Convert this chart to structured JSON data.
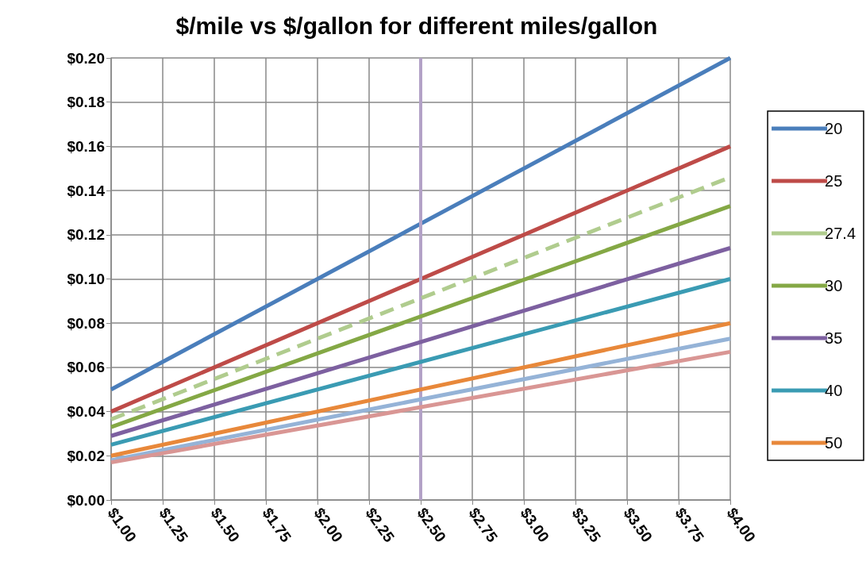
{
  "chart_data": {
    "type": "line",
    "title": "$/mile vs $/gallon for different miles/gallon",
    "xlim": [
      1,
      4
    ],
    "xticks": [
      {
        "value": 1,
        "label": "$1.00"
      },
      {
        "value": 1.25,
        "label": "$1.25"
      },
      {
        "value": 1.5,
        "label": "$1.50"
      },
      {
        "value": 1.75,
        "label": "$1.75"
      },
      {
        "value": 2,
        "label": "$2.00"
      },
      {
        "value": 2.25,
        "label": "$2.25"
      },
      {
        "value": 2.5,
        "label": "$2.50"
      },
      {
        "value": 2.75,
        "label": "$2.75"
      },
      {
        "value": 3,
        "label": "$3.00"
      },
      {
        "value": 3.25,
        "label": "$3.25"
      },
      {
        "value": 3.5,
        "label": "$3.50"
      },
      {
        "value": 3.75,
        "label": "$3.75"
      },
      {
        "value": 4,
        "label": "$4.00"
      }
    ],
    "ylim": [
      0,
      0.2
    ],
    "yticks": [
      {
        "value": 0,
        "label": "$0.00"
      },
      {
        "value": 0.02,
        "label": "$0.02"
      },
      {
        "value": 0.04,
        "label": "$0.04"
      },
      {
        "value": 0.06,
        "label": "$0.06"
      },
      {
        "value": 0.08,
        "label": "$0.08"
      },
      {
        "value": 0.1,
        "label": "$0.10"
      },
      {
        "value": 0.12,
        "label": "$0.12"
      },
      {
        "value": 0.14,
        "label": "$0.14"
      },
      {
        "value": 0.16,
        "label": "$0.16"
      },
      {
        "value": 0.18,
        "label": "$0.18"
      },
      {
        "value": 0.2,
        "label": "$0.20"
      }
    ],
    "grid": true,
    "legend": "right",
    "marker": "none",
    "x": [
      1,
      4
    ],
    "series": [
      {
        "name": "20",
        "color": "#4a7ebb",
        "values": [
          0.05,
          0.2
        ]
      },
      {
        "name": "25",
        "color": "#be4b48",
        "values": [
          0.04,
          0.16
        ]
      },
      {
        "name": "27.4",
        "color": "#b0cc8e",
        "values": [
          0.0365,
          0.146
        ],
        "line_style": "dashed"
      },
      {
        "name": "30",
        "color": "#84a845",
        "values": [
          0.033,
          0.133
        ]
      },
      {
        "name": "35",
        "color": "#7d60a0",
        "values": [
          0.029,
          0.114
        ]
      },
      {
        "name": "40",
        "color": "#3a9bb3",
        "values": [
          0.025,
          0.1
        ]
      },
      {
        "name": "50",
        "color": "#e8883a",
        "values": [
          0.02,
          0.08
        ]
      },
      {
        "color": "#95b3d7",
        "values": [
          0.018,
          0.073
        ]
      },
      {
        "color": "#d99694",
        "values": [
          0.017,
          0.067
        ]
      }
    ],
    "ref_lines": [
      {
        "axis": "x",
        "value": 2.5,
        "color": "#b3a2c7"
      }
    ]
  }
}
